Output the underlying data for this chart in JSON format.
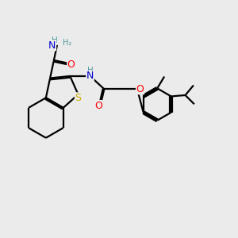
{
  "background_color": "#ebebeb",
  "atom_colors": {
    "C": "#000000",
    "N": "#0000cd",
    "O": "#ff0000",
    "S": "#ccaa00",
    "H": "#4a9a9a"
  },
  "figsize": [
    3.0,
    3.0
  ],
  "dpi": 100
}
